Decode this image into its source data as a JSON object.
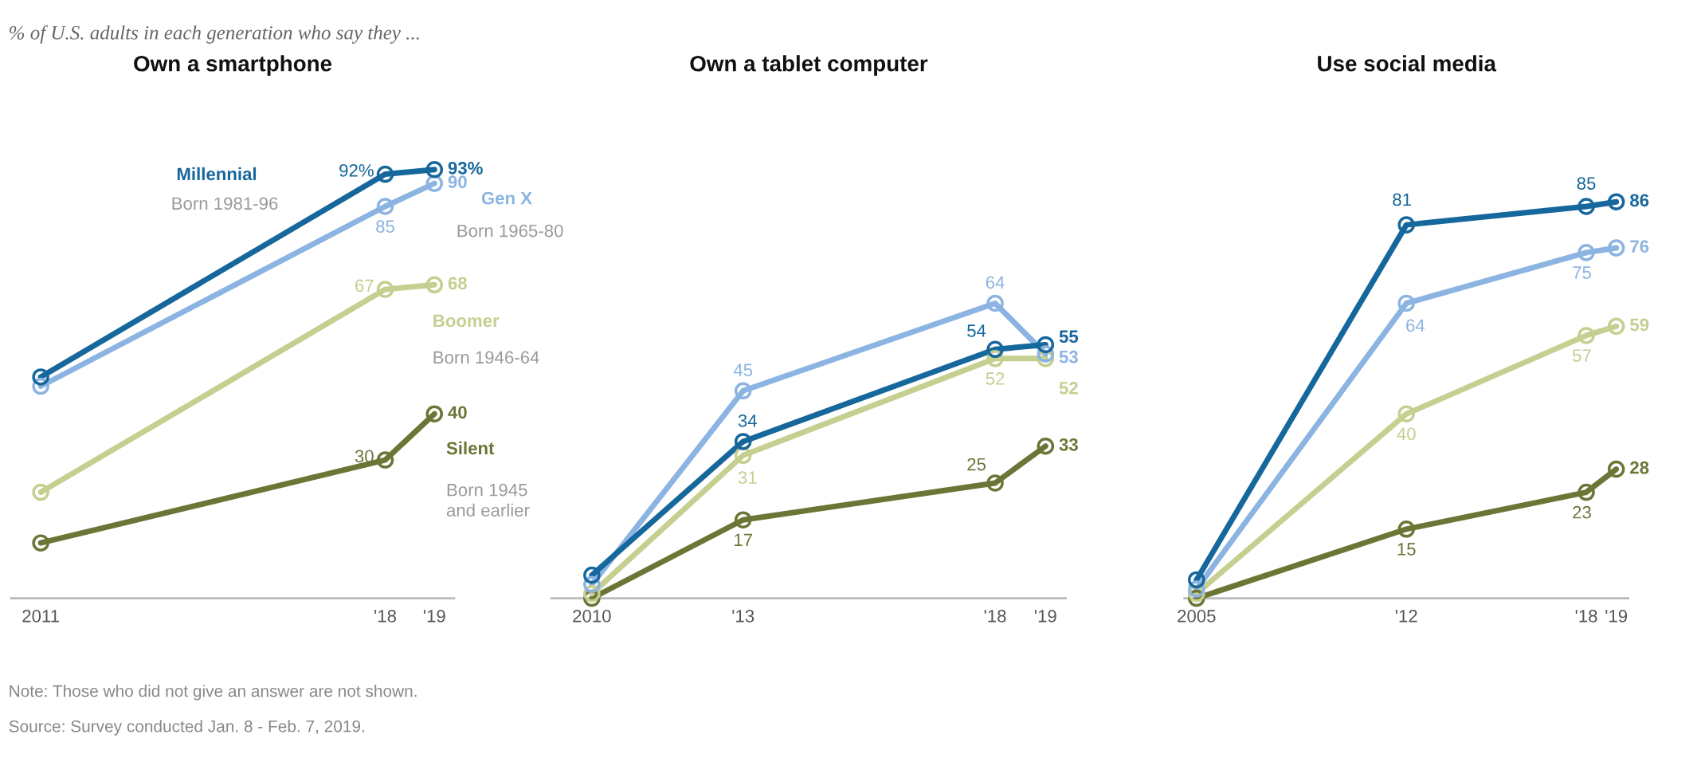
{
  "chart_data": [
    {
      "type": "line",
      "title": "Own a smartphone",
      "subtitle": "% of U.S. adults in each generation who say they ...",
      "x": [
        2011,
        2018,
        2019
      ],
      "xlim": [
        2010.4,
        2019.4
      ],
      "xticks": [
        2011,
        {
          "value": 2018,
          "label": "'18"
        },
        {
          "value": 2019,
          "label": "'19"
        }
      ],
      "tick_labels": "x",
      "marker": "circle",
      "legend": false,
      "annotations": [
        "Born 1981-96",
        "Born 1965-80",
        "Born 1946-64",
        "Born 1945\nand earlier",
        "Note: Those who did not give an answer are not shown.",
        "Source: Survey conducted Jan. 8 - Feb. 7, 2019."
      ],
      "series": [
        {
          "name": "Millennial",
          "color": "#16679c",
          "values": [
            48,
            92,
            93
          ],
          "value_labels": [
            null,
            "92%",
            "93%"
          ]
        },
        {
          "name": "Gen X",
          "color": "#8cb4e2",
          "values": [
            46,
            85,
            90
          ],
          "value_labels": [
            null,
            "85",
            "90"
          ]
        },
        {
          "name": "Boomer",
          "color": "#c4cf90",
          "values": [
            23,
            67,
            68
          ],
          "value_labels": [
            null,
            "67",
            "68"
          ]
        },
        {
          "name": "Silent",
          "color": "#6b7636",
          "values": [
            12,
            30,
            40
          ],
          "value_labels": [
            null,
            "30",
            "40"
          ]
        }
      ]
    },
    {
      "type": "line",
      "title": "Own a tablet computer",
      "x": [
        2010,
        2013,
        2018,
        2019
      ],
      "xlim": [
        2009.2,
        2019.4
      ],
      "xticks": [
        2010,
        {
          "value": 2013,
          "label": "'13"
        },
        {
          "value": 2018,
          "label": "'18"
        },
        {
          "value": 2019,
          "label": "'19"
        }
      ],
      "tick_labels": "x",
      "marker": "circle",
      "legend": false,
      "series": [
        {
          "color": "#16679c",
          "values": [
            5,
            34,
            54,
            55
          ],
          "value_labels": [
            null,
            "34",
            "54",
            "55"
          ]
        },
        {
          "color": "#8cb4e2",
          "values": [
            3,
            45,
            64,
            53
          ],
          "value_labels": [
            null,
            "45",
            "64",
            "53"
          ]
        },
        {
          "color": "#c4cf90",
          "values": [
            1,
            31,
            52,
            52
          ],
          "value_labels": [
            null,
            "31",
            "52",
            "52"
          ]
        },
        {
          "color": "#6b7636",
          "values": [
            0,
            17,
            25,
            33
          ],
          "value_labels": [
            null,
            "17",
            "25",
            "33"
          ]
        }
      ]
    },
    {
      "type": "line",
      "title": "Use social media",
      "x": [
        2005,
        2012,
        2018,
        2019
      ],
      "xlim": [
        2004.6,
        2019.4
      ],
      "xticks": [
        2005,
        {
          "value": 2012,
          "label": "'12"
        },
        {
          "value": 2018,
          "label": "'18"
        },
        {
          "value": 2019,
          "label": "'19"
        }
      ],
      "tick_labels": "x",
      "marker": "circle",
      "legend": false,
      "series": [
        {
          "color": "#16679c",
          "values": [
            4,
            81,
            85,
            86
          ],
          "value_labels": [
            null,
            "81",
            "85",
            "86"
          ]
        },
        {
          "color": "#8cb4e2",
          "values": [
            2,
            64,
            75,
            76
          ],
          "value_labels": [
            null,
            "64",
            "75",
            "76"
          ]
        },
        {
          "color": "#c4cf90",
          "values": [
            1,
            40,
            57,
            59
          ],
          "value_labels": [
            null,
            "40",
            "57",
            "59"
          ]
        },
        {
          "color": "#6b7636",
          "values": [
            0,
            15,
            23,
            28
          ],
          "value_labels": [
            null,
            "15",
            "23",
            "28"
          ]
        }
      ]
    }
  ]
}
